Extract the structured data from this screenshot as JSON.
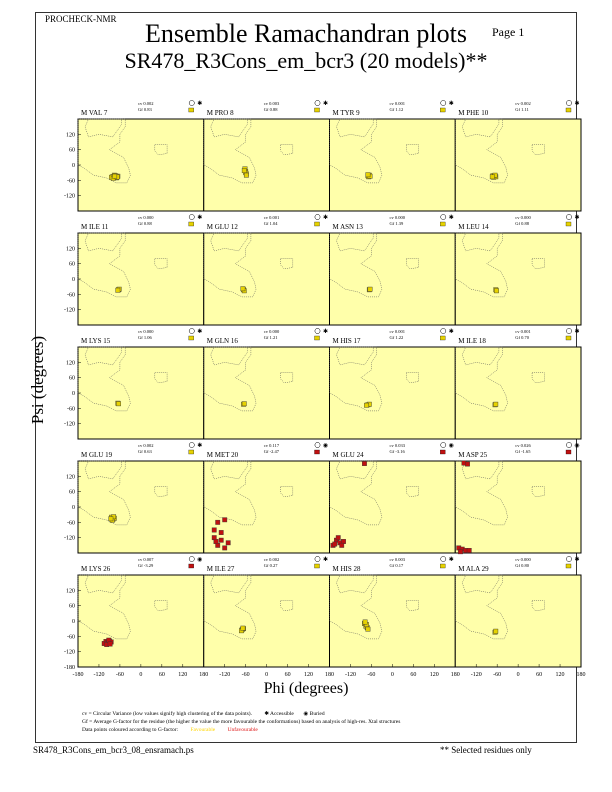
{
  "header": {
    "program": "PROCHECK-NMR",
    "page": "Page 1",
    "title": "Ensemble Ramachandran plots",
    "subtitle": "SR478_R3Cons_em_bcr3 (20 models)**"
  },
  "footer": {
    "filename": "SR478_R3Cons_em_bcr3_08_ensramach.ps",
    "note": "** Selected residues only"
  },
  "legend": {
    "cv_text": "cv = Circular Variance (low values signify high clustering of the data points).",
    "accessible": "Accessible",
    "buried": "Buried",
    "gf_text": "Gf = Average G-factor for the residue (the higher the value the more favourable the conformations) based on analysis of high-res. Xtal structures",
    "colour_text": "Data points coloured according to G-factor:",
    "favourable": "Favourable",
    "unfavourable": "Unfavourable"
  },
  "colors": {
    "panel_bg": "#ffffaa",
    "favourable": "#e6d200",
    "unfavourable": "#c01010",
    "mid": "#e07010",
    "region_outline": "#555555"
  },
  "chart_data": {
    "type": "scatter",
    "xlabel": "Phi (degrees)",
    "ylabel": "Psi (degrees)",
    "xlim": [
      -180,
      180
    ],
    "ylim": [
      -180,
      180
    ],
    "xticks": [
      -180,
      -120,
      -60,
      0,
      60,
      120,
      180
    ],
    "yticks": [
      -180,
      -120,
      -60,
      0,
      60,
      120
    ],
    "panel_yticks": [
      120,
      60,
      0,
      -60,
      -120
    ],
    "panels": [
      {
        "residue": "M VAL 7",
        "cv": "cv 0.002",
        "gf": "Gf 0.83",
        "buried": false,
        "gf_status": "favourable",
        "points": [
          [
            -80,
            -45
          ],
          [
            -74,
            -46
          ],
          [
            -70,
            -50
          ],
          [
            -76,
            -40
          ],
          [
            -66,
            -44
          ],
          [
            -84,
            -48
          ],
          [
            -72,
            -42
          ],
          [
            -79,
            -52
          ],
          [
            -68,
            -47
          ],
          [
            -75,
            -44
          ]
        ]
      },
      {
        "residue": "M PRO 8",
        "cv": "cv 0.003",
        "gf": "Gf 0.88",
        "buried": false,
        "gf_status": "favourable",
        "points": [
          [
            -62,
            -15
          ],
          [
            -60,
            -25
          ],
          [
            -58,
            -35
          ],
          [
            -60,
            -30
          ],
          [
            -64,
            -22
          ],
          [
            -58,
            -40
          ]
        ]
      },
      {
        "residue": "M TYR 9",
        "cv": "cv 0.001",
        "gf": "Gf 1.12",
        "buried": false,
        "gf_status": "favourable",
        "points": [
          [
            -70,
            -42
          ],
          [
            -66,
            -40
          ],
          [
            -68,
            -46
          ],
          [
            -64,
            -44
          ],
          [
            -70,
            -38
          ]
        ]
      },
      {
        "residue": "M PHE 10",
        "cv": "cv 0.002",
        "gf": "Gf 1.11",
        "buried": false,
        "gf_status": "favourable",
        "points": [
          [
            -72,
            -42
          ],
          [
            -68,
            -44
          ],
          [
            -64,
            -46
          ],
          [
            -70,
            -48
          ],
          [
            -66,
            -40
          ],
          [
            -74,
            -46
          ]
        ]
      },
      {
        "residue": "M ILE 11",
        "cv": "cv 0.000",
        "gf": "Gf 0.88",
        "buried": false,
        "gf_status": "favourable",
        "points": [
          [
            -64,
            -42
          ],
          [
            -62,
            -40
          ],
          [
            -66,
            -44
          ]
        ]
      },
      {
        "residue": "M GLU 12",
        "cv": "cv 0.001",
        "gf": "Gf 1.04",
        "buried": false,
        "gf_status": "favourable",
        "points": [
          [
            -66,
            -42
          ],
          [
            -64,
            -46
          ],
          [
            -68,
            -38
          ]
        ]
      },
      {
        "residue": "M ASN 13",
        "cv": "cv 0.000",
        "gf": "Gf 1.39",
        "buried": false,
        "gf_status": "favourable",
        "points": [
          [
            -66,
            -42
          ],
          [
            -64,
            -40
          ]
        ]
      },
      {
        "residue": "M LEU 14",
        "cv": "cv 0.000",
        "gf": "Gf 0.88",
        "buried": false,
        "gf_status": "favourable",
        "points": [
          [
            -64,
            -42
          ],
          [
            -62,
            -46
          ]
        ]
      },
      {
        "residue": "M LYS 15",
        "cv": "cv 0.000",
        "gf": "Gf 1.06",
        "buried": false,
        "gf_status": "favourable",
        "points": [
          [
            -66,
            -40
          ],
          [
            -64,
            -42
          ]
        ]
      },
      {
        "residue": "M GLN 16",
        "cv": "cv 0.000",
        "gf": "Gf 1.21",
        "buried": false,
        "gf_status": "favourable",
        "points": [
          [
            -66,
            -44
          ],
          [
            -64,
            -42
          ]
        ]
      },
      {
        "residue": "M HIS 17",
        "cv": "cv 0.001",
        "gf": "Gf 1.22",
        "buried": false,
        "gf_status": "favourable",
        "points": [
          [
            -70,
            -46
          ],
          [
            -66,
            -44
          ],
          [
            -74,
            -48
          ]
        ]
      },
      {
        "residue": "M ILE 18",
        "cv": "cv 0.001",
        "gf": "Gf 0.70",
        "buried": false,
        "gf_status": "favourable",
        "points": [
          [
            -66,
            -46
          ],
          [
            -64,
            -44
          ]
        ]
      },
      {
        "residue": "M GLU 19",
        "cv": "cv 0.002",
        "gf": "Gf 0.63",
        "buried": false,
        "gf_status": "favourable",
        "points": [
          [
            -84,
            -40
          ],
          [
            -80,
            -48
          ],
          [
            -76,
            -44
          ],
          [
            -82,
            -52
          ],
          [
            -78,
            -38
          ],
          [
            -86,
            -46
          ]
        ]
      },
      {
        "residue": "M MET 20",
        "cv": "cv 0.117",
        "gf": "Gf -2.47",
        "buried": true,
        "gf_status": "unfavourable",
        "points": [
          [
            -140,
            -60
          ],
          [
            -120,
            -50
          ],
          [
            -150,
            -90
          ],
          [
            -130,
            -130
          ],
          [
            -140,
            -150
          ],
          [
            -120,
            -160
          ],
          [
            -110,
            -140
          ],
          [
            -150,
            -120
          ],
          [
            -130,
            -100
          ],
          [
            -145,
            -135
          ]
        ]
      },
      {
        "residue": "M GLU 24",
        "cv": "cv 0.033",
        "gf": "Gf -3.16",
        "buried": true,
        "gf_status": "unfavourable",
        "points": [
          [
            -160,
            -130
          ],
          [
            -150,
            -140
          ],
          [
            -170,
            -150
          ],
          [
            -140,
            -135
          ],
          [
            -155,
            -120
          ],
          [
            -165,
            -145
          ],
          [
            -145,
            -150
          ],
          [
            -80,
            170
          ]
        ]
      },
      {
        "residue": "M ASP 25",
        "cv": "cv 0.026",
        "gf": "Gf -1.65",
        "buried": true,
        "gf_status": "unfavourable",
        "points": [
          [
            -170,
            -160
          ],
          [
            -160,
            -165
          ],
          [
            -150,
            -170
          ],
          [
            -165,
            -175
          ],
          [
            -140,
            -170
          ],
          [
            -155,
            172
          ],
          [
            -145,
            168
          ]
        ]
      },
      {
        "residue": "M LYS 26",
        "cv": "cv 0.007",
        "gf": "Gf -3.29",
        "buried": true,
        "gf_status": "unfavourable",
        "points": [
          [
            -100,
            -80
          ],
          [
            -95,
            -85
          ],
          [
            -90,
            -78
          ],
          [
            -105,
            -88
          ],
          [
            -85,
            -82
          ],
          [
            -98,
            -92
          ],
          [
            -92,
            -75
          ],
          [
            -88,
            -90
          ]
        ]
      },
      {
        "residue": "M ILE 27",
        "cv": "cv 0.002",
        "gf": "Gf 0.27",
        "buried": false,
        "gf_status": "favourable",
        "points": [
          [
            -70,
            -34
          ],
          [
            -66,
            -30
          ],
          [
            -72,
            -38
          ],
          [
            -68,
            -28
          ]
        ]
      },
      {
        "residue": "M HIS 28",
        "cv": "cv 0.003",
        "gf": "Gf 0.17",
        "buried": false,
        "gf_status": "favourable",
        "points": [
          [
            -80,
            -10
          ],
          [
            -76,
            -20
          ],
          [
            -72,
            -26
          ],
          [
            -74,
            -14
          ],
          [
            -70,
            -32
          ],
          [
            -78,
            -4
          ]
        ]
      },
      {
        "residue": "M ALA 29",
        "cv": "cv 0.000",
        "gf": "Gf 0.80",
        "buried": false,
        "gf_status": "favourable",
        "points": [
          [
            -66,
            -44
          ],
          [
            -64,
            -40
          ]
        ]
      }
    ]
  }
}
